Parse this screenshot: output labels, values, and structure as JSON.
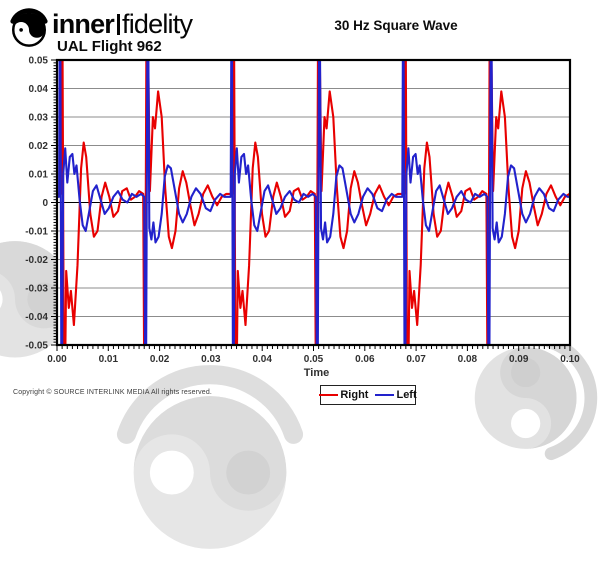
{
  "header": {
    "brand_bold": "inner",
    "brand_light": "fidelity",
    "subtitle": "UAL Flight 962",
    "logo_icon": "yin-yang-headphones-icon"
  },
  "title": "30 Hz Square Wave",
  "footer": {
    "copyright": "Copyright © SOURCE INTERLINK MEDIA All rights reserved."
  },
  "colors": {
    "right": "#e80000",
    "left": "#2222cc",
    "grid": "#8c8c8c",
    "zero_line": "#000000",
    "axis": "#000000",
    "tick_label": "#303030",
    "watermark": "#dcdcdc"
  },
  "chart_data": {
    "type": "line",
    "title": "30 Hz Square Wave",
    "xlabel": "Time",
    "ylabel": "",
    "xlim": [
      0,
      0.1
    ],
    "ylim": [
      -0.05,
      0.05
    ],
    "grid": "horizontal-only",
    "legend_position": "bottom-center",
    "x_ticks": [
      0,
      0.01,
      0.02,
      0.03,
      0.04,
      0.05,
      0.06,
      0.07,
      0.08,
      0.09,
      0.1
    ],
    "x_tick_labels": [
      "0.00",
      "0.01",
      "0.02",
      "0.03",
      "0.04",
      "0.05",
      "0.06",
      "0.07",
      "0.08",
      "0.09",
      "0.10"
    ],
    "y_ticks": [
      0.05,
      0.04,
      0.03,
      0.02,
      0.01,
      0,
      -0.01,
      -0.02,
      -0.03,
      -0.04,
      -0.05
    ],
    "y_tick_labels": [
      "0.05",
      "0.04",
      "0.03",
      "0.02",
      "0.01",
      "0",
      "-0.01",
      "-0.02",
      "-0.03",
      "-0.04",
      "-0.05"
    ],
    "minor_tick_step": 0.001,
    "signal": "30 Hz square wave, transient spikes clipped at ±0.05 every half period with decaying ringing",
    "period_s": 0.033453,
    "repeats": 3,
    "series": [
      {
        "name": "Right",
        "color": "#e80000",
        "pattern": [
          [
            0.0,
            0.003
          ],
          [
            0.0008,
            0.003
          ],
          [
            0.001,
            0.09
          ],
          [
            0.0014,
            -0.09
          ],
          [
            0.0018,
            -0.024
          ],
          [
            0.0023,
            -0.037
          ],
          [
            0.0027,
            -0.031
          ],
          [
            0.0033,
            -0.043
          ],
          [
            0.004,
            -0.022
          ],
          [
            0.0047,
            0.012
          ],
          [
            0.0052,
            0.021
          ],
          [
            0.0057,
            0.016
          ],
          [
            0.0065,
            -0.004
          ],
          [
            0.0072,
            -0.012
          ],
          [
            0.0079,
            -0.01
          ],
          [
            0.0087,
            0.002
          ],
          [
            0.0094,
            0.007
          ],
          [
            0.0102,
            0.002
          ],
          [
            0.011,
            -0.005
          ],
          [
            0.0119,
            -0.003
          ],
          [
            0.0127,
            0.004
          ],
          [
            0.0136,
            0.005
          ],
          [
            0.0144,
            0.001
          ],
          [
            0.0152,
            0.002
          ],
          [
            0.016,
            0.004
          ],
          [
            0.0168,
            0.003
          ],
          [
            0.0171,
            -0.09
          ],
          [
            0.0175,
            0.09
          ],
          [
            0.0181,
            0.004
          ],
          [
            0.0187,
            0.03
          ],
          [
            0.0191,
            0.026
          ],
          [
            0.0197,
            0.039
          ],
          [
            0.0204,
            0.03
          ],
          [
            0.0211,
            0.005
          ],
          [
            0.0218,
            -0.012
          ],
          [
            0.0224,
            -0.016
          ],
          [
            0.0231,
            -0.01
          ],
          [
            0.0238,
            0.005
          ],
          [
            0.0245,
            0.011
          ],
          [
            0.0252,
            0.007
          ],
          [
            0.026,
            -0.001
          ],
          [
            0.0268,
            -0.008
          ],
          [
            0.0276,
            -0.004
          ],
          [
            0.0285,
            0.003
          ],
          [
            0.0294,
            0.006
          ],
          [
            0.0303,
            0.002
          ],
          [
            0.0312,
            -0.001
          ],
          [
            0.0321,
            0.002
          ],
          [
            0.033,
            0.003
          ]
        ]
      },
      {
        "name": "Left",
        "color": "#2222cc",
        "pattern": [
          [
            0.0,
            0.002
          ],
          [
            0.0004,
            0.002
          ],
          [
            0.0006,
            0.09
          ],
          [
            0.0009,
            -0.09
          ],
          [
            0.0012,
            0.01
          ],
          [
            0.0016,
            0.019
          ],
          [
            0.002,
            0.007
          ],
          [
            0.0025,
            0.016
          ],
          [
            0.003,
            0.017
          ],
          [
            0.0034,
            0.01
          ],
          [
            0.0038,
            0.013
          ],
          [
            0.0044,
            0.001
          ],
          [
            0.005,
            -0.008
          ],
          [
            0.0056,
            -0.01
          ],
          [
            0.0063,
            -0.003
          ],
          [
            0.007,
            0.004
          ],
          [
            0.0077,
            0.006
          ],
          [
            0.0085,
            0.001
          ],
          [
            0.0093,
            -0.004
          ],
          [
            0.0101,
            -0.002
          ],
          [
            0.011,
            0.002
          ],
          [
            0.0119,
            0.004
          ],
          [
            0.0128,
            0.001
          ],
          [
            0.0137,
            0.0
          ],
          [
            0.0146,
            0.003
          ],
          [
            0.0155,
            0.002
          ],
          [
            0.0164,
            0.003
          ],
          [
            0.017,
            0.002
          ],
          [
            0.0173,
            -0.09
          ],
          [
            0.0177,
            0.09
          ],
          [
            0.018,
            -0.009
          ],
          [
            0.0184,
            -0.013
          ],
          [
            0.0188,
            -0.007
          ],
          [
            0.0192,
            -0.014
          ],
          [
            0.0198,
            -0.012
          ],
          [
            0.0204,
            -0.004
          ],
          [
            0.021,
            0.009
          ],
          [
            0.0216,
            0.013
          ],
          [
            0.0222,
            0.012
          ],
          [
            0.023,
            0.004
          ],
          [
            0.0238,
            -0.004
          ],
          [
            0.0245,
            -0.007
          ],
          [
            0.0253,
            -0.004
          ],
          [
            0.0262,
            0.002
          ],
          [
            0.0271,
            0.005
          ],
          [
            0.028,
            0.003
          ],
          [
            0.029,
            -0.002
          ],
          [
            0.0299,
            -0.003
          ],
          [
            0.0308,
            0.001
          ],
          [
            0.0318,
            0.003
          ],
          [
            0.0326,
            0.002
          ],
          [
            0.0333,
            0.002
          ]
        ]
      }
    ]
  }
}
